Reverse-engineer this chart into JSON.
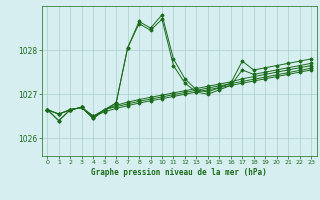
{
  "background_color": "#d6eef0",
  "grid_color": "#aacccc",
  "line_color": "#1a6b1a",
  "title": "Graphe pression niveau de la mer (hPa)",
  "xlim": [
    -0.5,
    23.5
  ],
  "ylim": [
    1025.6,
    1029.0
  ],
  "yticks": [
    1026,
    1027,
    1028
  ],
  "xticks": [
    0,
    1,
    2,
    3,
    4,
    5,
    6,
    7,
    8,
    9,
    10,
    11,
    12,
    13,
    14,
    15,
    16,
    17,
    18,
    19,
    20,
    21,
    22,
    23
  ],
  "series": [
    [
      1026.65,
      1026.4,
      1026.65,
      1026.7,
      1026.45,
      1026.65,
      1026.8,
      1028.05,
      1028.65,
      1028.5,
      1028.8,
      1027.8,
      1027.35,
      1027.1,
      1027.05,
      1027.15,
      1027.25,
      1027.75,
      1027.55,
      1027.6,
      1027.65,
      1027.7,
      1027.75,
      1027.8
    ],
    [
      1026.65,
      1026.4,
      1026.65,
      1026.7,
      1026.45,
      1026.65,
      1026.8,
      1028.05,
      1028.6,
      1028.45,
      1028.7,
      1027.65,
      1027.25,
      1027.05,
      1027.0,
      1027.1,
      1027.2,
      1027.55,
      1027.45,
      1027.5,
      1027.55,
      1027.6,
      1027.65,
      1027.7
    ],
    [
      1026.65,
      1026.55,
      1026.65,
      1026.7,
      1026.5,
      1026.65,
      1026.75,
      1026.82,
      1026.88,
      1026.93,
      1026.98,
      1027.03,
      1027.08,
      1027.13,
      1027.18,
      1027.23,
      1027.28,
      1027.35,
      1027.4,
      1027.45,
      1027.5,
      1027.55,
      1027.6,
      1027.65
    ],
    [
      1026.65,
      1026.55,
      1026.65,
      1026.7,
      1026.5,
      1026.65,
      1026.72,
      1026.78,
      1026.84,
      1026.89,
      1026.94,
      1026.99,
      1027.04,
      1027.09,
      1027.14,
      1027.19,
      1027.24,
      1027.29,
      1027.34,
      1027.39,
      1027.44,
      1027.49,
      1027.54,
      1027.59
    ],
    [
      1026.65,
      1026.55,
      1026.65,
      1026.7,
      1026.5,
      1026.6,
      1026.68,
      1026.74,
      1026.8,
      1026.85,
      1026.9,
      1026.95,
      1027.0,
      1027.05,
      1027.1,
      1027.15,
      1027.2,
      1027.25,
      1027.3,
      1027.35,
      1027.4,
      1027.45,
      1027.5,
      1027.55
    ]
  ]
}
